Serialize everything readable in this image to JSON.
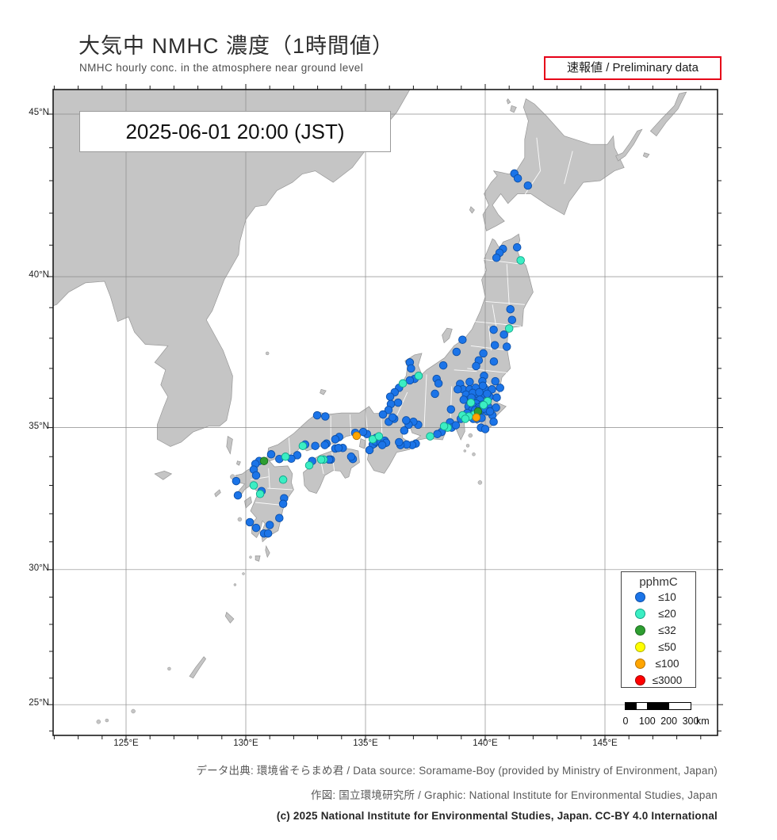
{
  "header": {
    "title_jp": "大気中 NMHC 濃度（1時間値）",
    "subtitle_en": "NMHC hourly conc. in the atmosphere near ground level",
    "preliminary_badge": "速報値 / Preliminary data"
  },
  "map": {
    "timestamp": "2025-06-01  20:00 (JST)"
  },
  "axis": {
    "lat": [
      {
        "label": "45°N",
        "value": 45
      },
      {
        "label": "40°N",
        "value": 40
      },
      {
        "label": "35°N",
        "value": 35
      },
      {
        "label": "30°N",
        "value": 30
      },
      {
        "label": "25°N",
        "value": 25
      }
    ],
    "lon": [
      {
        "label": "125°E",
        "value": 125
      },
      {
        "label": "130°E",
        "value": 130
      },
      {
        "label": "135°E",
        "value": 135
      },
      {
        "label": "140°E",
        "value": 140
      },
      {
        "label": "145°E",
        "value": 145
      }
    ]
  },
  "legend": {
    "title": "pphmC",
    "items": [
      {
        "label": "≤10",
        "color": "#1b74e8",
        "edge": "#0d4fa6"
      },
      {
        "label": "≤20",
        "color": "#3beec3",
        "edge": "#14a58a"
      },
      {
        "label": "≤32",
        "color": "#2e9e31",
        "edge": "#1d6b1f"
      },
      {
        "label": "≤50",
        "color": "#ffff00",
        "edge": "#b0b000"
      },
      {
        "label": "≤100",
        "color": "#ffa500",
        "edge": "#b97400"
      },
      {
        "label": "≤3000",
        "color": "#ff0000",
        "edge": "#a00000"
      }
    ]
  },
  "scalebar": {
    "labels": [
      "0",
      "100",
      "200",
      "300"
    ],
    "unit": "km",
    "max_km": 300
  },
  "footer": {
    "line1": "データ出典: 環境省そらまめ君 / Data source: Soramame-Boy (provided by Ministry of Environment, Japan)",
    "line2": "作図: 国立環境研究所 / Graphic: National Institute for Environmental Studies, Japan",
    "line3": "(c) 2025 National Institute for Environmental Studies, Japan. CC-BY 4.0 International"
  },
  "chart_data": {
    "type": "scatter",
    "projection": "mercator",
    "lon_range": [
      121.95,
      149.7
    ],
    "lat_range": [
      23.85,
      45.74
    ],
    "unit": "pphmC",
    "levels": [
      "≤10",
      "≤20",
      "≤32",
      "≤50",
      "≤100",
      "≤3000"
    ],
    "points": [
      [
        141.22,
        43.22,
        0
      ],
      [
        141.36,
        43.07,
        0
      ],
      [
        141.78,
        42.85,
        0
      ],
      [
        140.74,
        40.88,
        0
      ],
      [
        140.6,
        40.76,
        0
      ],
      [
        140.47,
        40.6,
        0
      ],
      [
        141.33,
        40.93,
        0
      ],
      [
        141.48,
        40.52,
        1
      ],
      [
        141.05,
        38.95,
        0
      ],
      [
        141.12,
        38.6,
        0
      ],
      [
        141.0,
        38.32,
        1
      ],
      [
        140.35,
        38.28,
        0
      ],
      [
        140.78,
        38.12,
        0
      ],
      [
        139.05,
        37.95,
        0
      ],
      [
        140.4,
        37.77,
        0
      ],
      [
        140.9,
        37.72,
        0
      ],
      [
        139.92,
        37.5,
        0
      ],
      [
        139.73,
        37.27,
        0
      ],
      [
        140.36,
        37.23,
        0
      ],
      [
        138.8,
        37.55,
        0
      ],
      [
        138.25,
        37.1,
        0
      ],
      [
        137.97,
        36.65,
        0
      ],
      [
        138.05,
        36.5,
        0
      ],
      [
        137.9,
        36.15,
        0
      ],
      [
        136.85,
        37.2,
        0
      ],
      [
        136.9,
        37.0,
        0
      ],
      [
        137.22,
        36.75,
        1
      ],
      [
        137.05,
        36.65,
        0
      ],
      [
        136.85,
        36.6,
        0
      ],
      [
        136.56,
        36.5,
        1
      ],
      [
        136.4,
        36.35,
        0
      ],
      [
        136.22,
        36.2,
        0
      ],
      [
        136.03,
        36.05,
        0
      ],
      [
        139.62,
        37.08,
        0
      ],
      [
        139.95,
        36.75,
        0
      ],
      [
        139.88,
        36.57,
        0
      ],
      [
        140.42,
        36.57,
        0
      ],
      [
        140.62,
        36.35,
        0
      ],
      [
        139.97,
        36.32,
        0
      ],
      [
        140.28,
        36.3,
        0
      ],
      [
        139.35,
        36.55,
        0
      ],
      [
        138.95,
        36.48,
        0
      ],
      [
        139.07,
        36.3,
        0
      ],
      [
        139.35,
        36.3,
        0
      ],
      [
        139.6,
        36.35,
        0
      ],
      [
        139.85,
        36.1,
        0
      ],
      [
        140.18,
        36.05,
        0
      ],
      [
        140.48,
        36.02,
        0
      ],
      [
        139.6,
        36.05,
        0
      ],
      [
        139.2,
        36.12,
        0
      ],
      [
        139.48,
        36.18,
        0
      ],
      [
        139.9,
        36.42,
        0
      ],
      [
        140.08,
        36.15,
        0
      ],
      [
        139.75,
        36.2,
        0
      ],
      [
        138.85,
        36.3,
        0
      ],
      [
        139.32,
        35.95,
        0
      ],
      [
        139.55,
        35.92,
        0
      ],
      [
        139.78,
        35.95,
        0
      ],
      [
        140.1,
        35.9,
        1
      ],
      [
        139.4,
        35.85,
        1
      ],
      [
        139.62,
        35.82,
        0
      ],
      [
        139.88,
        35.78,
        0
      ],
      [
        140.12,
        35.72,
        0
      ],
      [
        140.45,
        35.68,
        0
      ],
      [
        139.3,
        35.72,
        0
      ],
      [
        139.5,
        35.72,
        0
      ],
      [
        139.72,
        35.68,
        0
      ],
      [
        139.45,
        35.6,
        0
      ],
      [
        139.58,
        35.6,
        0
      ],
      [
        139.7,
        35.55,
        2
      ],
      [
        139.75,
        35.62,
        0
      ],
      [
        139.85,
        35.6,
        0
      ],
      [
        139.63,
        35.35,
        4
      ],
      [
        139.55,
        35.45,
        1
      ],
      [
        139.4,
        35.45,
        0
      ],
      [
        139.32,
        35.38,
        1
      ],
      [
        139.15,
        35.32,
        0
      ],
      [
        139.05,
        35.42,
        1
      ],
      [
        138.98,
        35.3,
        0
      ],
      [
        139.68,
        35.3,
        0
      ],
      [
        139.85,
        35.33,
        0
      ],
      [
        140.08,
        35.55,
        0
      ],
      [
        140.3,
        35.42,
        0
      ],
      [
        140.35,
        35.2,
        0
      ],
      [
        139.82,
        35.0,
        0
      ],
      [
        140.0,
        34.95,
        0
      ],
      [
        139.17,
        35.3,
        1
      ],
      [
        139.25,
        35.5,
        0
      ],
      [
        139.5,
        35.3,
        0
      ],
      [
        139.95,
        35.65,
        0
      ],
      [
        140.2,
        35.55,
        0
      ],
      [
        139.42,
        36.02,
        0
      ],
      [
        139.1,
        35.95,
        0
      ],
      [
        139.93,
        35.77,
        1
      ],
      [
        138.57,
        35.62,
        0
      ],
      [
        138.53,
        35.18,
        0
      ],
      [
        138.43,
        35.0,
        1
      ],
      [
        138.6,
        35.0,
        0
      ],
      [
        138.77,
        35.08,
        0
      ],
      [
        138.28,
        35.05,
        1
      ],
      [
        138.18,
        34.85,
        0
      ],
      [
        138.0,
        34.78,
        0
      ],
      [
        137.7,
        34.7,
        1
      ],
      [
        137.2,
        35.1,
        0
      ],
      [
        137.0,
        35.2,
        0
      ],
      [
        136.8,
        35.1,
        0
      ],
      [
        136.7,
        35.25,
        0
      ],
      [
        137.1,
        34.45,
        0
      ],
      [
        136.95,
        34.4,
        0
      ],
      [
        136.72,
        34.42,
        0
      ],
      [
        136.46,
        34.4,
        0
      ],
      [
        136.4,
        34.5,
        0
      ],
      [
        136.62,
        34.9,
        0
      ],
      [
        136.2,
        35.3,
        0
      ],
      [
        135.97,
        35.2,
        0
      ],
      [
        136.13,
        35.35,
        0
      ],
      [
        136.36,
        35.85,
        0
      ],
      [
        136.06,
        35.8,
        0
      ],
      [
        135.96,
        35.6,
        0
      ],
      [
        135.73,
        35.45,
        0
      ],
      [
        135.3,
        34.6,
        1
      ],
      [
        135.56,
        34.7,
        1
      ],
      [
        135.45,
        34.65,
        0
      ],
      [
        135.52,
        34.58,
        0
      ],
      [
        135.36,
        34.45,
        0
      ],
      [
        135.3,
        34.42,
        0
      ],
      [
        135.42,
        34.52,
        0
      ],
      [
        135.63,
        34.5,
        0
      ],
      [
        135.8,
        34.55,
        0
      ],
      [
        135.86,
        34.48,
        0
      ],
      [
        135.7,
        34.4,
        0
      ],
      [
        135.06,
        34.78,
        0
      ],
      [
        134.9,
        34.85,
        0
      ],
      [
        134.63,
        34.72,
        4
      ],
      [
        134.57,
        34.82,
        0
      ],
      [
        135.17,
        34.23,
        0
      ],
      [
        133.9,
        34.68,
        0
      ],
      [
        133.74,
        34.6,
        0
      ],
      [
        133.74,
        34.28,
        0
      ],
      [
        133.37,
        34.45,
        0
      ],
      [
        133.3,
        34.4,
        0
      ],
      [
        132.9,
        34.37,
        0
      ],
      [
        132.38,
        34.37,
        1
      ],
      [
        132.48,
        34.42,
        0
      ],
      [
        132.15,
        34.05,
        0
      ],
      [
        131.9,
        33.93,
        0
      ],
      [
        131.66,
        34.0,
        1
      ],
      [
        131.4,
        33.92,
        0
      ],
      [
        131.06,
        34.08,
        0
      ],
      [
        132.98,
        35.42,
        0
      ],
      [
        133.32,
        35.38,
        0
      ],
      [
        134.47,
        33.92,
        0
      ],
      [
        134.4,
        34.0,
        0
      ],
      [
        134.05,
        34.3,
        0
      ],
      [
        133.87,
        34.3,
        0
      ],
      [
        133.55,
        33.9,
        0
      ],
      [
        133.48,
        33.9,
        0
      ],
      [
        133.25,
        33.9,
        1
      ],
      [
        133.15,
        33.9,
        1
      ],
      [
        132.77,
        33.85,
        0
      ],
      [
        132.65,
        33.7,
        1
      ],
      [
        130.76,
        33.85,
        2
      ],
      [
        130.56,
        33.85,
        0
      ],
      [
        130.4,
        33.75,
        0
      ],
      [
        130.33,
        33.55,
        0
      ],
      [
        130.43,
        33.35,
        0
      ],
      [
        129.6,
        33.15,
        0
      ],
      [
        129.67,
        32.65,
        0
      ],
      [
        130.33,
        33.0,
        1
      ],
      [
        130.6,
        32.7,
        1
      ],
      [
        130.66,
        32.8,
        0
      ],
      [
        131.56,
        33.2,
        1
      ],
      [
        131.6,
        32.55,
        0
      ],
      [
        131.56,
        32.35,
        0
      ],
      [
        131.4,
        31.85,
        0
      ],
      [
        130.17,
        31.7,
        0
      ],
      [
        130.43,
        31.5,
        0
      ],
      [
        131.0,
        31.6,
        0
      ],
      [
        130.76,
        31.3,
        0
      ],
      [
        130.93,
        31.3,
        0
      ]
    ]
  }
}
